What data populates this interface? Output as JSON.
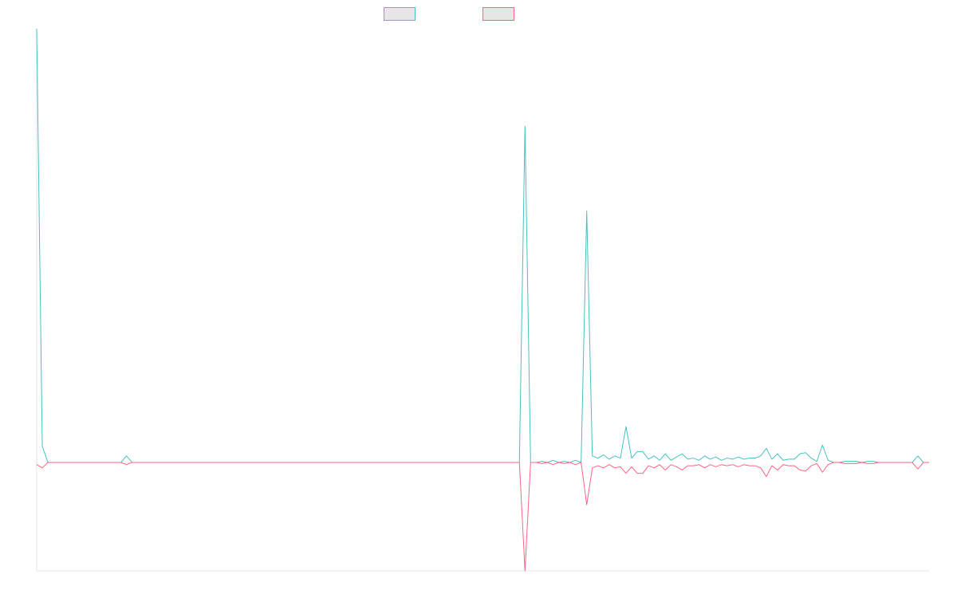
{
  "chart_data": {
    "type": "line",
    "title": "",
    "xlabel": "",
    "ylabel": "",
    "grid": false,
    "legend_position": "top-center",
    "x": [
      1,
      2,
      3,
      4,
      5,
      6,
      7,
      8,
      9,
      10,
      11,
      12,
      13,
      14,
      15,
      16,
      17,
      18,
      19,
      20,
      21,
      22,
      23,
      24,
      25,
      26,
      27,
      28,
      29,
      30,
      31,
      32,
      33,
      34,
      35,
      36,
      37,
      38,
      39,
      40,
      41,
      42,
      43,
      44,
      45,
      46,
      47,
      48,
      49,
      50,
      51,
      52,
      53,
      54,
      55,
      56,
      57,
      58,
      59,
      60,
      61,
      62,
      63,
      64,
      65,
      66,
      67,
      68,
      69,
      70,
      71,
      72,
      73,
      74,
      75,
      76,
      77,
      78,
      79,
      80,
      81,
      82,
      83,
      84,
      85,
      86,
      87,
      88,
      89,
      90,
      91,
      92,
      93,
      94,
      95,
      96,
      97,
      98,
      99,
      100,
      101,
      102,
      103,
      104,
      105,
      106,
      107,
      108,
      109,
      110,
      111,
      112,
      113,
      114,
      115,
      116,
      117,
      118,
      119,
      120,
      121,
      122,
      123,
      124,
      125,
      126,
      127,
      128,
      129,
      130,
      131,
      132,
      133,
      134,
      135,
      136,
      137,
      138,
      139,
      140,
      141,
      142,
      143,
      144,
      145,
      146,
      147,
      148,
      149,
      150,
      151,
      152,
      153,
      154,
      155,
      156,
      157,
      158,
      159,
      160
    ],
    "ylim": [
      -1.0,
      4.0
    ],
    "series": [
      {
        "color": "#4bc0c0",
        "values": [
          4.0,
          0.15,
          0.0,
          0.0,
          0.0,
          0.0,
          0.0,
          0.0,
          0.0,
          0.0,
          0.0,
          0.0,
          0.0,
          0.0,
          0.0,
          0.0,
          0.06,
          0.0,
          0.0,
          0.0,
          0.0,
          0.0,
          0.0,
          0.0,
          0.0,
          0.0,
          0.0,
          0.0,
          0.0,
          0.0,
          0.0,
          0.0,
          0.0,
          0.0,
          0.0,
          0.0,
          0.0,
          0.0,
          0.0,
          0.0,
          0.0,
          0.0,
          0.0,
          0.0,
          0.0,
          0.0,
          0.0,
          0.0,
          0.0,
          0.0,
          0.0,
          0.0,
          0.0,
          0.0,
          0.0,
          0.0,
          0.0,
          0.0,
          0.0,
          0.0,
          0.0,
          0.0,
          0.0,
          0.0,
          0.0,
          0.0,
          0.0,
          0.0,
          0.0,
          0.0,
          0.0,
          0.0,
          0.0,
          0.0,
          0.0,
          0.0,
          0.0,
          0.0,
          0.0,
          0.0,
          0.0,
          0.0,
          0.0,
          0.0,
          0.0,
          0.0,
          0.0,
          3.1,
          0.0,
          0.0,
          0.01,
          0.0,
          0.02,
          0.0,
          0.01,
          0.0,
          0.02,
          0.0,
          2.32,
          0.06,
          0.04,
          0.07,
          0.03,
          0.06,
          0.04,
          0.33,
          0.04,
          0.1,
          0.1,
          0.03,
          0.06,
          0.02,
          0.08,
          0.02,
          0.05,
          0.08,
          0.03,
          0.04,
          0.02,
          0.06,
          0.03,
          0.05,
          0.02,
          0.04,
          0.03,
          0.05,
          0.03,
          0.04,
          0.04,
          0.06,
          0.13,
          0.03,
          0.08,
          0.02,
          0.03,
          0.03,
          0.08,
          0.09,
          0.04,
          0.01,
          0.16,
          0.02,
          0.0,
          0.0,
          0.01,
          0.01,
          0.01,
          0.0,
          0.01,
          0.01,
          0.0,
          0.0,
          0.0,
          0.0,
          0.0,
          0.0,
          0.0,
          0.06,
          0.0,
          0.0
        ]
      },
      {
        "color": "#ff6384",
        "values": [
          -0.02,
          -0.05,
          0.0,
          0.0,
          0.0,
          0.0,
          0.0,
          0.0,
          0.0,
          0.0,
          0.0,
          0.0,
          0.0,
          0.0,
          0.0,
          0.0,
          -0.02,
          0.0,
          0.0,
          0.0,
          0.0,
          0.0,
          0.0,
          0.0,
          0.0,
          0.0,
          0.0,
          0.0,
          0.0,
          0.0,
          0.0,
          0.0,
          0.0,
          0.0,
          0.0,
          0.0,
          0.0,
          0.0,
          0.0,
          0.0,
          0.0,
          0.0,
          0.0,
          0.0,
          0.0,
          0.0,
          0.0,
          0.0,
          0.0,
          0.0,
          0.0,
          0.0,
          0.0,
          0.0,
          0.0,
          0.0,
          0.0,
          0.0,
          0.0,
          0.0,
          0.0,
          0.0,
          0.0,
          0.0,
          0.0,
          0.0,
          0.0,
          0.0,
          0.0,
          0.0,
          0.0,
          0.0,
          0.0,
          0.0,
          0.0,
          0.0,
          0.0,
          0.0,
          0.0,
          0.0,
          0.0,
          0.0,
          0.0,
          0.0,
          0.0,
          0.0,
          0.0,
          -1.0,
          0.0,
          0.0,
          -0.01,
          0.0,
          -0.02,
          0.0,
          -0.01,
          0.0,
          -0.02,
          0.0,
          -0.39,
          -0.05,
          -0.03,
          -0.05,
          -0.02,
          -0.05,
          -0.04,
          -0.1,
          -0.04,
          -0.1,
          -0.1,
          -0.03,
          -0.05,
          -0.02,
          -0.07,
          -0.02,
          -0.04,
          -0.07,
          -0.03,
          -0.03,
          -0.02,
          -0.05,
          -0.02,
          -0.04,
          -0.02,
          -0.03,
          -0.02,
          -0.04,
          -0.02,
          -0.03,
          -0.03,
          -0.05,
          -0.13,
          -0.03,
          -0.07,
          -0.02,
          -0.03,
          -0.03,
          -0.07,
          -0.08,
          -0.03,
          -0.01,
          -0.09,
          -0.02,
          0.0,
          0.0,
          -0.01,
          -0.01,
          -0.01,
          0.0,
          -0.01,
          -0.01,
          0.0,
          0.0,
          0.0,
          0.0,
          0.0,
          0.0,
          0.0,
          -0.06,
          0.0,
          0.0
        ]
      }
    ]
  }
}
